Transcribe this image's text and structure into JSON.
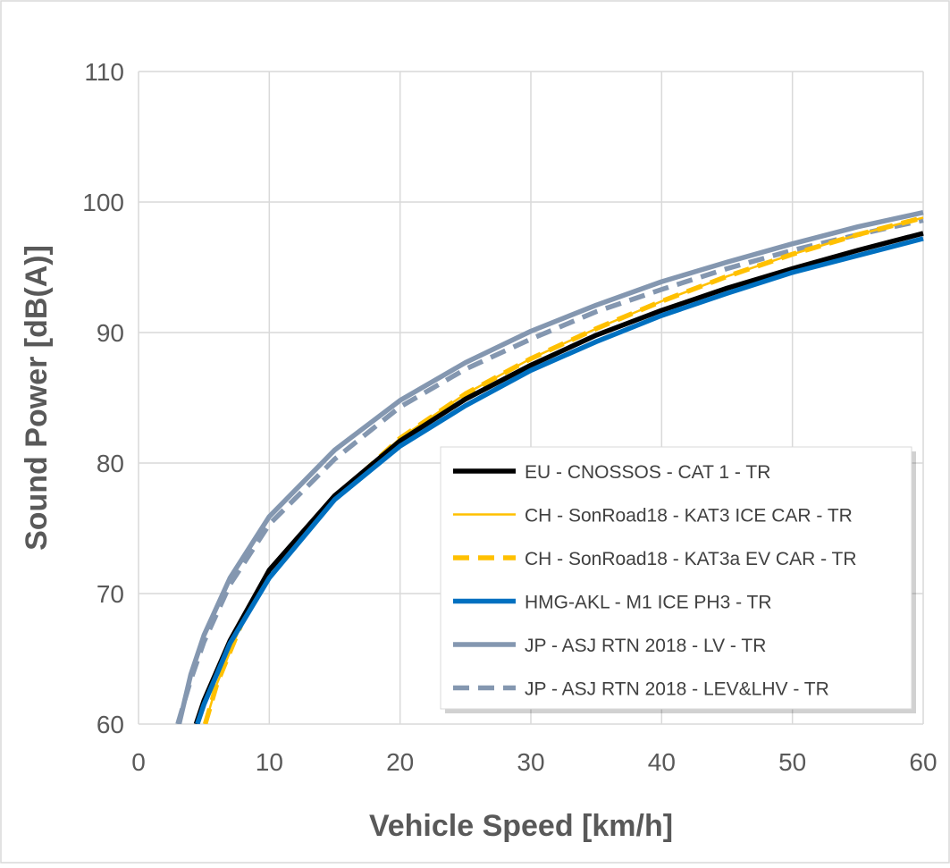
{
  "chart_data": {
    "type": "line",
    "title": "",
    "xlabel": "Vehicle Speed [km/h]",
    "ylabel": "Sound Power [dB(A)]",
    "xlim": [
      0,
      60
    ],
    "ylim": [
      60,
      110
    ],
    "xticks": [
      "0",
      "10",
      "20",
      "30",
      "40",
      "50",
      "60"
    ],
    "yticks": [
      "60",
      "70",
      "80",
      "90",
      "100",
      "110"
    ],
    "grid": true,
    "legend_position": "lower-right",
    "series": [
      {
        "name": "EU - CNOSSOS - CAT 1 - TR",
        "color": "#000000",
        "style": "solid",
        "width": "thick",
        "x": [
          4.4,
          5,
          7,
          10,
          15,
          20,
          25,
          30,
          35,
          40,
          45,
          50,
          55,
          60
        ],
        "y": [
          60,
          61.8,
          66.4,
          71.8,
          77.5,
          81.7,
          84.9,
          87.5,
          89.8,
          91.7,
          93.4,
          94.9,
          96.3,
          97.6
        ]
      },
      {
        "name": "CH - SonRoad18 - KAT3 ICE CAR - TR",
        "color": "#ffc000",
        "style": "solid",
        "width": "thin",
        "x": [
          5.1,
          6,
          8,
          10,
          15,
          20,
          25,
          30,
          35,
          40,
          45,
          50,
          55,
          60
        ],
        "y": [
          60,
          63.1,
          68,
          71.3,
          77.3,
          81.9,
          85.3,
          88.0,
          90.3,
          92.4,
          94.3,
          96.0,
          97.5,
          98.8
        ]
      },
      {
        "name": "CH - SonRoad18 - KAT3a EV CAR - TR",
        "color": "#ffc000",
        "style": "dashed",
        "width": "thick",
        "x": [
          5.1,
          6,
          8,
          10,
          15,
          20,
          25,
          30,
          35,
          40,
          45,
          50,
          55,
          60
        ],
        "y": [
          60,
          63.1,
          68,
          71.3,
          77.3,
          81.9,
          85.3,
          88.0,
          90.3,
          92.4,
          94.3,
          96.0,
          97.5,
          98.8
        ]
      },
      {
        "name": "HMG-AKL - M1 ICE PH3 - TR",
        "color": "#0070c0",
        "style": "solid",
        "width": "thick",
        "x": [
          4.5,
          5,
          7,
          10,
          15,
          20,
          25,
          30,
          35,
          40,
          45,
          50,
          55,
          60
        ],
        "y": [
          60,
          61.5,
          66.2,
          71.2,
          77.2,
          81.3,
          84.4,
          87.1,
          89.3,
          91.3,
          93.0,
          94.6,
          95.9,
          97.2
        ]
      },
      {
        "name": "JP - ASJ RTN 2018 - LV - TR",
        "color": "#8497b0",
        "style": "solid",
        "width": "thick",
        "x": [
          3.1,
          4,
          5,
          7,
          10,
          15,
          20,
          25,
          30,
          35,
          40,
          45,
          50,
          55,
          60
        ],
        "y": [
          60,
          63.8,
          66.8,
          71.2,
          75.9,
          81.0,
          84.8,
          87.7,
          90.1,
          92.1,
          93.9,
          95.4,
          96.8,
          98.1,
          99.2
        ]
      },
      {
        "name": "JP - ASJ RTN 2018 - LEV&LHV - TR",
        "color": "#8497b0",
        "style": "dashed",
        "width": "thick",
        "x": [
          3.0,
          4,
          5,
          7,
          10,
          15,
          20,
          25,
          30,
          35,
          40,
          45,
          50,
          55,
          60
        ],
        "y": [
          60,
          63.4,
          66.3,
          70.7,
          75.3,
          80.3,
          84.3,
          87.2,
          89.5,
          91.6,
          93.3,
          94.9,
          96.3,
          97.5,
          98.6
        ]
      }
    ]
  }
}
